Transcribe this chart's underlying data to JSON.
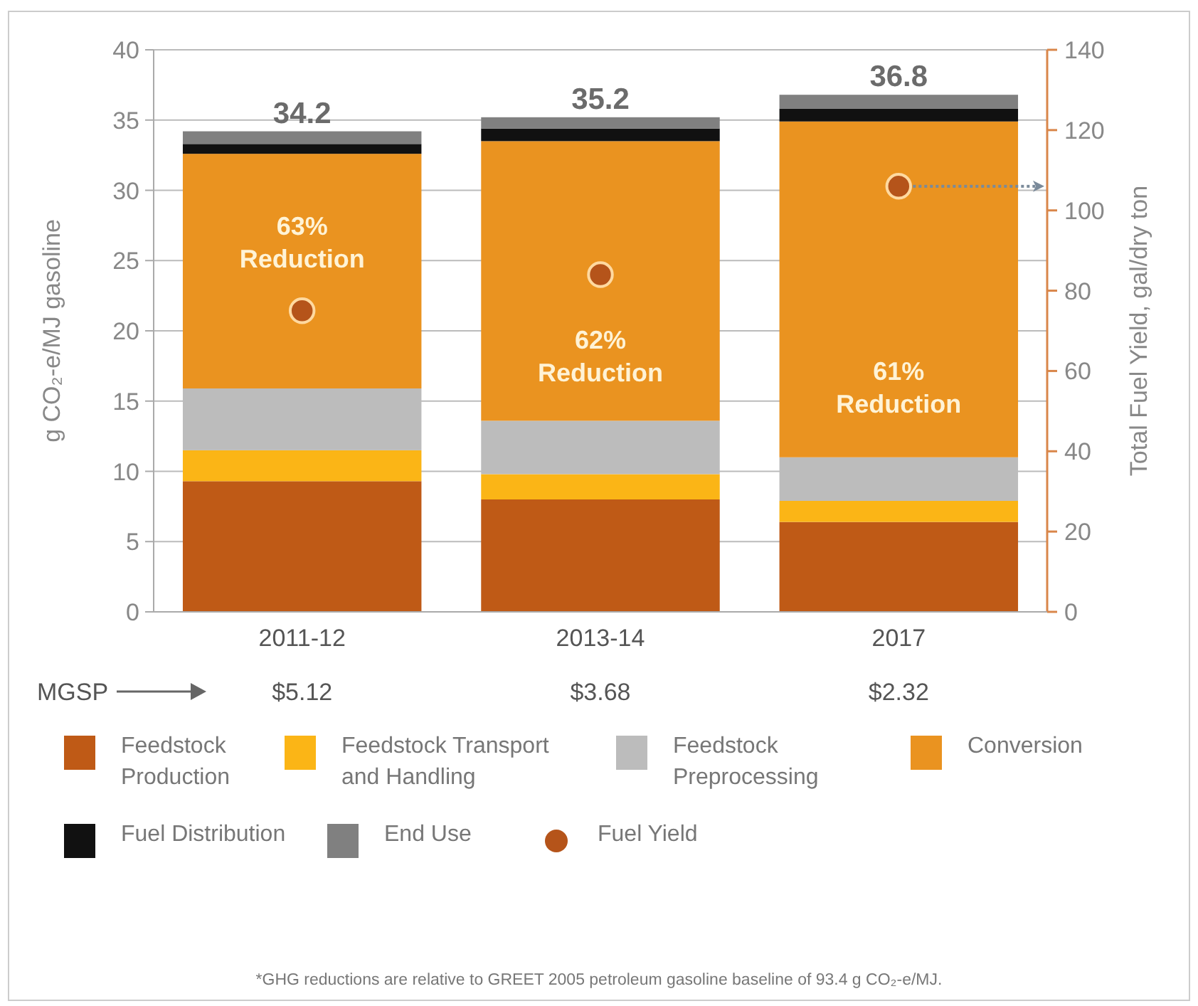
{
  "chart_data": {
    "type": "bar",
    "stacked": true,
    "categories": [
      "2011-12",
      "2013-14",
      "2017"
    ],
    "series": [
      {
        "name": "Feedstock Production",
        "color": "#bf5a16",
        "values": [
          9.3,
          8.0,
          6.4
        ]
      },
      {
        "name": "Feedstock Transport and Handling",
        "color": "#fbb516",
        "values": [
          2.2,
          1.8,
          1.5
        ]
      },
      {
        "name": "Feedstock Preprocessing",
        "color": "#bcbcbc",
        "values": [
          4.4,
          3.8,
          3.1
        ]
      },
      {
        "name": "Conversion",
        "color": "#ea9320",
        "values": [
          16.7,
          19.9,
          23.9
        ]
      },
      {
        "name": "Fuel Distribution",
        "color": "#111111",
        "values": [
          0.7,
          0.9,
          0.9
        ]
      },
      {
        "name": "End Use",
        "color": "#808080",
        "values": [
          0.9,
          0.8,
          1.0
        ]
      },
      {
        "name": "Fuel Yield",
        "type": "scatter",
        "axis": "y2",
        "color": "#b5541a",
        "values": [
          75,
          84,
          106
        ]
      }
    ],
    "totals": [
      "34.2",
      "35.2",
      "36.8"
    ],
    "ylabel": "g CO₂-e/MJ gasoline",
    "y2label": "Total Fuel Yield, gal/dry ton",
    "ylim": [
      0,
      40
    ],
    "yticks": [
      0,
      5,
      10,
      15,
      20,
      25,
      30,
      35,
      40
    ],
    "y2lim": [
      0,
      140
    ],
    "y2ticks": [
      0,
      20,
      40,
      60,
      80,
      100,
      120,
      140
    ],
    "grid": "y",
    "legend": "bottom",
    "marker": "circle",
    "annotations": [
      "63%\nReduction",
      "62%\nReduction",
      "61%\nReduction",
      "MGSP",
      "$5.12",
      "$3.68",
      "$2.32",
      "*GHG reductions are relative to GREET 2005 petroleum gasoline baseline of 93.4 g CO₂-e/MJ."
    ]
  }
}
